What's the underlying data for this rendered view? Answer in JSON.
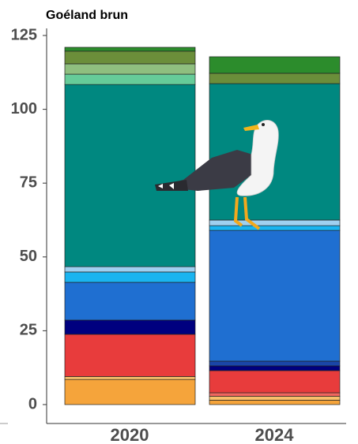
{
  "chart_data": {
    "type": "stacked-bar",
    "title": "Goéland brun",
    "categories": [
      "2020",
      "2024"
    ],
    "ylim": [
      0,
      125
    ],
    "yticks": [
      0,
      25,
      50,
      75,
      100,
      125
    ],
    "series": [
      {
        "color": "#f5a43b",
        "values": [
          8.5,
          1.5
        ]
      },
      {
        "color": "#f8c06b",
        "values": [
          1.0,
          1.3
        ]
      },
      {
        "color": "#f0675f",
        "values": [
          null,
          1.2
        ]
      },
      {
        "color": "#e83c3c",
        "values": [
          14.3,
          7.5
        ]
      },
      {
        "color": "#00007f",
        "values": [
          4.8,
          1.6
        ]
      },
      {
        "color": "#1a46a8",
        "values": [
          null,
          1.6
        ]
      },
      {
        "color": "#1f6fd1",
        "values": [
          12.8,
          44.3
        ]
      },
      {
        "color": "#1ab4f0",
        "values": [
          3.5,
          1.6
        ]
      },
      {
        "color": "#9fd0f0",
        "values": [
          1.8,
          1.9
        ]
      },
      {
        "color": "#008880",
        "values": [
          61.7,
          46.2
        ]
      },
      {
        "color": "#66cc99",
        "values": [
          3.5,
          null
        ]
      },
      {
        "color": "#8fbf7f",
        "values": [
          3.5,
          null
        ]
      },
      {
        "color": "#6b8e3a",
        "values": [
          4.3,
          3.5
        ]
      },
      {
        "color": "#2c8c2c",
        "values": [
          1.3,
          5.6
        ]
      }
    ]
  }
}
